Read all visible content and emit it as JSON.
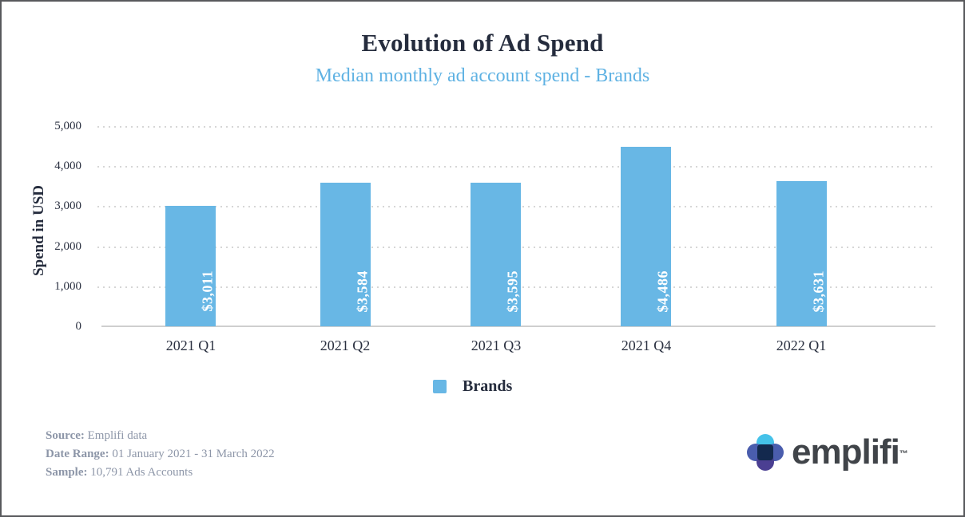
{
  "header": {
    "title": "Evolution of Ad Spend",
    "subtitle": "Median monthly ad account spend - Brands"
  },
  "chart_data": {
    "type": "bar",
    "title": "Evolution of Ad Spend",
    "subtitle": "Median monthly ad account spend - Brands",
    "categories": [
      "2021 Q1",
      "2021 Q2",
      "2021 Q3",
      "2021 Q4",
      "2022 Q1"
    ],
    "series": [
      {
        "name": "Brands",
        "values": [
          3011,
          3584,
          3595,
          4486,
          3631
        ],
        "data_labels": [
          "$3,011",
          "$3,584",
          "$3,595",
          "$4,486",
          "$3,631"
        ],
        "color": "#68b7e5"
      }
    ],
    "xlabel": "",
    "ylabel": "Spend in USD",
    "ylim": [
      0,
      5000
    ],
    "ytick_labels": [
      "5,000",
      "4,000",
      "3,000",
      "2,000",
      "1,000",
      "0"
    ],
    "grid": "horizontal-dotted",
    "legend_position": "bottom"
  },
  "legend": {
    "label": "Brands"
  },
  "footer": {
    "source_label": "Source:",
    "source_value": "Emplifi data",
    "date_range_label": "Date Range:",
    "date_range_value": "01 January 2021 - 31 March 2022",
    "sample_label": "Sample:",
    "sample_value": "10,791 Ads Accounts",
    "logo_text": "emplifi",
    "logo_tm": "™"
  },
  "colors": {
    "bar_blue": "#68b7e5",
    "subtitle_blue": "#5fb2e3",
    "title_navy": "#252c3d",
    "meta_gray": "#8d96a8",
    "gridline_gray": "#d6d6d6",
    "logo_cyan": "#45c2e9",
    "logo_blue": "#4a5dad",
    "logo_purple": "#4b3f92",
    "logo_navy": "#13294e",
    "logo_text_gray": "#404449"
  }
}
